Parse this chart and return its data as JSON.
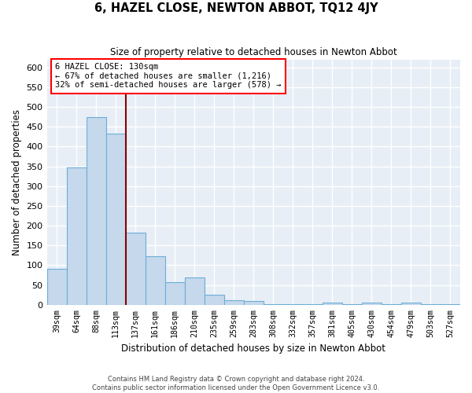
{
  "title": "6, HAZEL CLOSE, NEWTON ABBOT, TQ12 4JY",
  "subtitle": "Size of property relative to detached houses in Newton Abbot",
  "xlabel": "Distribution of detached houses by size in Newton Abbot",
  "ylabel": "Number of detached properties",
  "bar_color": "#c5d8ec",
  "bar_edge_color": "#6aaed6",
  "background_color": "#e8eef6",
  "grid_color": "#ffffff",
  "categories": [
    "39sqm",
    "64sqm",
    "88sqm",
    "113sqm",
    "137sqm",
    "161sqm",
    "186sqm",
    "210sqm",
    "235sqm",
    "259sqm",
    "283sqm",
    "308sqm",
    "332sqm",
    "357sqm",
    "381sqm",
    "405sqm",
    "430sqm",
    "454sqm",
    "479sqm",
    "503sqm",
    "527sqm"
  ],
  "values": [
    90,
    348,
    474,
    432,
    183,
    122,
    58,
    70,
    25,
    12,
    9,
    2,
    2,
    2,
    5,
    2,
    5,
    2,
    5,
    2,
    2
  ],
  "ylim": [
    0,
    620
  ],
  "yticks": [
    0,
    50,
    100,
    150,
    200,
    250,
    300,
    350,
    400,
    450,
    500,
    550,
    600
  ],
  "property_line_idx": 3.5,
  "annotation_title": "6 HAZEL CLOSE: 130sqm",
  "annotation_line1": "← 67% of detached houses are smaller (1,216)",
  "annotation_line2": "32% of semi-detached houses are larger (578) →",
  "footnote1": "Contains HM Land Registry data © Crown copyright and database right 2024.",
  "footnote2": "Contains public sector information licensed under the Open Government Licence v3.0."
}
